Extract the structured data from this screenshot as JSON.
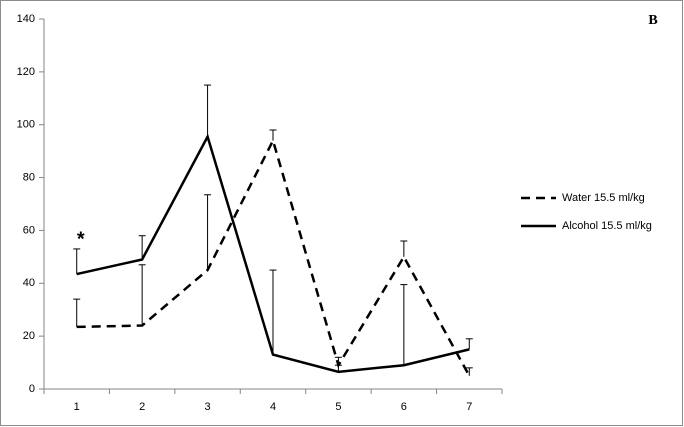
{
  "chart_data": {
    "type": "line",
    "categories": [
      "1",
      "2",
      "3",
      "4",
      "5",
      "6",
      "7"
    ],
    "series": [
      {
        "name": "Water 15.5 ml/kg",
        "color": "#000000",
        "dash": true,
        "values": [
          23.5,
          24,
          45,
          94,
          9,
          50,
          5
        ],
        "errors": [
          10.5,
          23,
          28.5,
          4,
          3,
          6,
          3
        ]
      },
      {
        "name": "Alcohol 15.5 ml/kg",
        "color": "#000000",
        "dash": false,
        "values": [
          43.5,
          49,
          95.5,
          13,
          6.5,
          9,
          15
        ],
        "errors": [
          9.5,
          9,
          19.5,
          32,
          2.5,
          30.5,
          4
        ]
      }
    ],
    "ylim": [
      0,
      140
    ],
    "yticks": [
      0,
      20,
      40,
      60,
      80,
      100,
      120,
      140
    ],
    "annotations": [
      "*",
      "B"
    ],
    "legend": "right"
  }
}
